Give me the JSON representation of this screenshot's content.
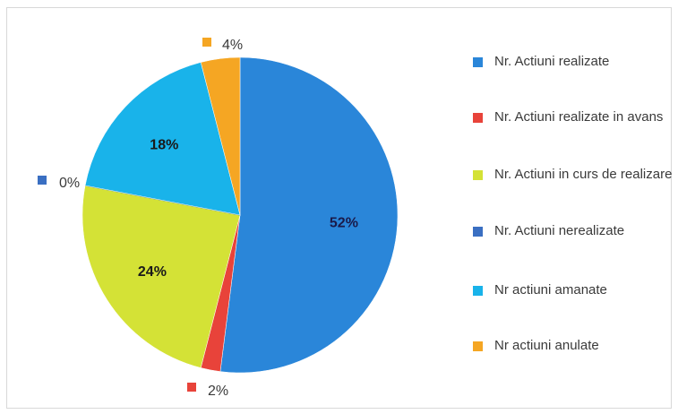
{
  "chart_data": {
    "type": "pie",
    "slices": [
      {
        "label": "Nr. Actiuni realizate",
        "value": 52,
        "value_label": "52%",
        "color": "#2a86d9",
        "label_style": "inside"
      },
      {
        "label": "Nr. Actiuni realizate in avans",
        "value": 2,
        "value_label": "2%",
        "color": "#e8433a",
        "label_style": "outside"
      },
      {
        "label": "Nr. Actiuni  in curs de realizare",
        "value": 24,
        "value_label": "24%",
        "color": "#d4e236",
        "label_style": "inside"
      },
      {
        "label": "Nr. Actiuni nerealizate",
        "value": 0,
        "value_label": "0%",
        "color": "#3a6fc2",
        "label_style": "outside"
      },
      {
        "label": "Nr actiuni amanate",
        "value": 18,
        "value_label": "18%",
        "color": "#19b3ea",
        "label_style": "inside"
      },
      {
        "label": "Nr actiuni anulate",
        "value": 4,
        "value_label": "4%",
        "color": "#f5a623",
        "label_style": "outside"
      }
    ],
    "legend_position": "right"
  }
}
